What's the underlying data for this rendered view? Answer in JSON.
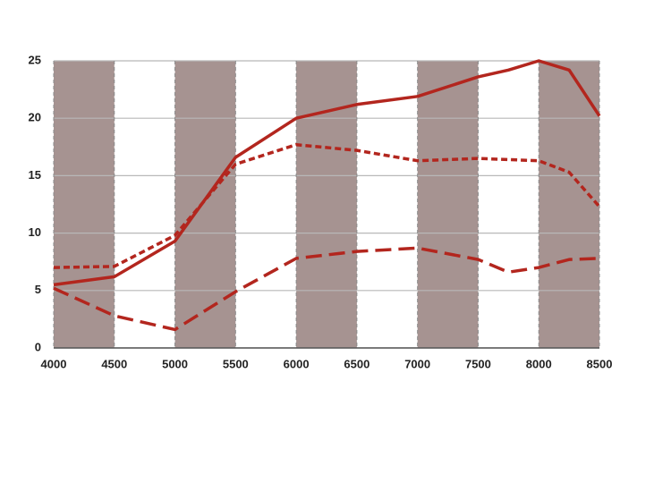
{
  "chart_data": {
    "type": "line",
    "xlim": [
      4000,
      8500
    ],
    "xticks": [
      4000,
      4500,
      5000,
      5500,
      6000,
      6500,
      7000,
      7500,
      8000,
      8500
    ],
    "ylim": [
      0,
      25
    ],
    "yticks": [
      0,
      5,
      10,
      15,
      20,
      25
    ],
    "grid": true,
    "grid_color": "#b8b8b8",
    "band_color": "#a69391",
    "series": [
      {
        "color": "#b3261e",
        "dash": "solid",
        "x": [
          4000,
          4500,
          5000,
          5500,
          6000,
          6500,
          7000,
          7500,
          7750,
          8000,
          8250,
          8500
        ],
        "values": [
          5.5,
          6.2,
          9.3,
          16.6,
          20.0,
          21.2,
          21.9,
          23.6,
          24.2,
          25.0,
          24.2,
          20.2
        ]
      },
      {
        "color": "#b3261e",
        "dash": "short",
        "x": [
          4000,
          4500,
          5000,
          5500,
          6000,
          6500,
          7000,
          7500,
          8000,
          8250,
          8500
        ],
        "values": [
          7.0,
          7.1,
          9.8,
          16.0,
          17.7,
          17.2,
          16.3,
          16.5,
          16.3,
          15.3,
          12.3
        ]
      },
      {
        "color": "#b3261e",
        "dash": "long",
        "x": [
          4000,
          4500,
          5000,
          5500,
          6000,
          6500,
          7000,
          7500,
          7750,
          8000,
          8250,
          8500
        ],
        "values": [
          5.2,
          2.8,
          1.6,
          4.9,
          7.8,
          8.4,
          8.7,
          7.7,
          6.6,
          7.0,
          7.7,
          7.8
        ]
      }
    ]
  }
}
